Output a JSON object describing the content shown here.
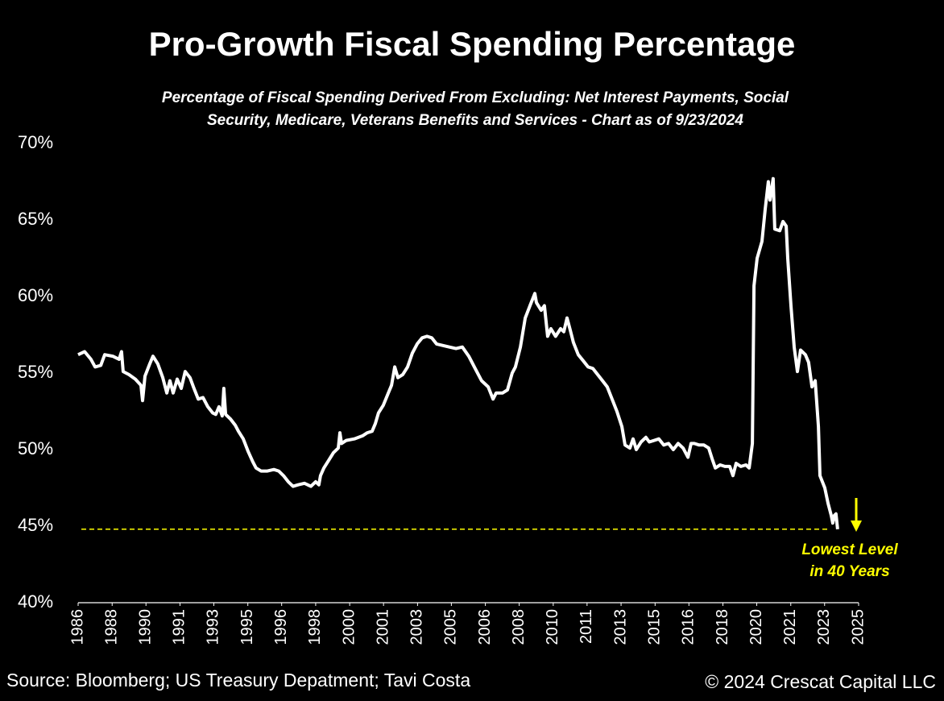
{
  "chart_data": {
    "type": "line",
    "title": "Pro-Growth Fiscal Spending Percentage",
    "subtitle": [
      "Percentage of Fiscal Spending Derived From Excluding:  Net Interest Payments, Social",
      "Security, Medicare, Veterans Benefits and Services - Chart as of 9/23/2024"
    ],
    "x": [
      1986.0,
      1986.32,
      1986.64,
      1986.85,
      1987.13,
      1987.33,
      1987.73,
      1988.05,
      1988.17,
      1988.25,
      1988.54,
      1988.86,
      1989.14,
      1989.22,
      1989.34,
      1989.58,
      1989.74,
      1989.98,
      1990.23,
      1990.43,
      1990.59,
      1990.75,
      1990.95,
      1991.15,
      1991.35,
      1991.59,
      1991.76,
      1992.0,
      1992.24,
      1992.48,
      1992.72,
      1992.88,
      1993.04,
      1993.2,
      1993.28,
      1993.37,
      1993.61,
      1993.85,
      1994.01,
      1994.25,
      1994.49,
      1994.73,
      1994.89,
      1995.14,
      1995.46,
      1995.78,
      1996.02,
      1996.26,
      1996.5,
      1996.74,
      1996.99,
      1997.31,
      1997.63,
      1997.87,
      1998.03,
      1998.11,
      1998.28,
      1998.52,
      1998.76,
      1999.0,
      1999.08,
      1999.16,
      1999.4,
      1999.8,
      2000.21,
      2000.45,
      2000.69,
      2000.85,
      2001.01,
      2001.25,
      2001.5,
      2001.66,
      2001.82,
      2001.98,
      2002.22,
      2002.46,
      2002.7,
      2002.94,
      2003.19,
      2003.43,
      2003.67,
      2003.91,
      2004.23,
      2004.55,
      2004.88,
      2005.2,
      2005.52,
      2005.84,
      2006.16,
      2006.49,
      2006.73,
      2006.89,
      2007.21,
      2007.45,
      2007.69,
      2007.85,
      2008.1,
      2008.34,
      2008.58,
      2008.82,
      2008.9,
      2009.14,
      2009.3,
      2009.46,
      2009.62,
      2009.86,
      2010.11,
      2010.27,
      2010.43,
      2010.59,
      2010.75,
      2010.99,
      2011.24,
      2011.48,
      2011.72,
      2011.96,
      2012.2,
      2012.44,
      2012.68,
      2012.92,
      2013.17,
      2013.33,
      2013.57,
      2013.73,
      2013.89,
      2014.13,
      2014.37,
      2014.54,
      2014.78,
      2015.02,
      2015.26,
      2015.5,
      2015.74,
      2015.98,
      2016.23,
      2016.47,
      2016.63,
      2016.79,
      2017.03,
      2017.27,
      2017.51,
      2017.68,
      2017.84,
      2018.08,
      2018.32,
      2018.56,
      2018.72,
      2018.88,
      2019.12,
      2019.37,
      2019.53,
      2019.69,
      2019.77,
      2019.93,
      2020.17,
      2020.33,
      2020.49,
      2020.57,
      2020.73,
      2020.81,
      2021.06,
      2021.22,
      2021.38,
      2021.46,
      2021.62,
      2021.78,
      2021.94,
      2022.1,
      2022.34,
      2022.5,
      2022.67,
      2022.83,
      2022.99,
      2023.07,
      2023.31,
      2023.47,
      2023.63,
      2023.71,
      2023.79,
      2023.87,
      2023.95
    ],
    "series": [
      {
        "color": "#ffffff",
        "values": [
          56.2,
          56.4,
          55.9,
          55.4,
          55.5,
          56.2,
          56.1,
          55.9,
          56.4,
          55.1,
          54.9,
          54.6,
          54.2,
          53.2,
          54.8,
          55.6,
          56.1,
          55.6,
          54.7,
          53.7,
          54.5,
          53.7,
          54.6,
          54.0,
          55.1,
          54.7,
          54.1,
          53.3,
          53.4,
          52.8,
          52.4,
          52.3,
          52.8,
          52.2,
          54.0,
          52.3,
          52.0,
          51.6,
          51.2,
          50.7,
          49.9,
          49.2,
          48.8,
          48.6,
          48.6,
          48.7,
          48.6,
          48.3,
          47.9,
          47.6,
          47.7,
          47.8,
          47.6,
          47.9,
          47.7,
          48.3,
          48.8,
          49.3,
          49.8,
          50.1,
          51.1,
          50.4,
          50.6,
          50.7,
          50.9,
          51.1,
          51.2,
          51.7,
          52.4,
          52.9,
          53.7,
          54.2,
          55.4,
          54.7,
          54.9,
          55.4,
          56.3,
          56.9,
          57.3,
          57.4,
          57.3,
          56.9,
          56.8,
          56.7,
          56.6,
          56.7,
          56.1,
          55.3,
          54.5,
          54.1,
          53.3,
          53.7,
          53.7,
          53.9,
          55.0,
          55.4,
          56.7,
          58.6,
          59.4,
          60.2,
          59.6,
          59.1,
          59.4,
          57.4,
          57.9,
          57.4,
          57.9,
          57.7,
          58.6,
          57.8,
          57.0,
          56.2,
          55.8,
          55.4,
          55.3,
          54.9,
          54.5,
          54.1,
          53.3,
          52.5,
          51.5,
          50.3,
          50.1,
          50.7,
          50.0,
          50.5,
          50.8,
          50.5,
          50.6,
          50.7,
          50.3,
          50.4,
          50.0,
          50.4,
          50.1,
          49.5,
          50.4,
          50.4,
          50.3,
          50.3,
          50.1,
          49.4,
          48.8,
          49.0,
          48.9,
          48.9,
          48.3,
          49.1,
          48.9,
          49.0,
          48.8,
          50.4,
          60.7,
          62.5,
          63.6,
          65.7,
          67.5,
          66.3,
          67.7,
          64.4,
          64.3,
          64.9,
          64.6,
          62.5,
          59.4,
          56.7,
          55.1,
          56.5,
          56.2,
          55.7,
          54.1,
          54.5,
          51.5,
          48.3,
          47.5,
          46.5,
          45.7,
          45.2,
          45.7,
          45.8,
          44.8
        ]
      }
    ],
    "xlim": [
      1986,
      2025
    ],
    "xticks": [
      {
        "value": 1986.0,
        "label": "1986"
      },
      {
        "value": 1987.7,
        "label": "1988"
      },
      {
        "value": 1989.39,
        "label": "1990"
      },
      {
        "value": 1991.09,
        "label": "1991"
      },
      {
        "value": 1992.78,
        "label": "1993"
      },
      {
        "value": 1994.48,
        "label": "1995"
      },
      {
        "value": 1996.17,
        "label": "1996"
      },
      {
        "value": 1997.87,
        "label": "1998"
      },
      {
        "value": 1999.57,
        "label": "2000"
      },
      {
        "value": 2001.26,
        "label": "2001"
      },
      {
        "value": 2002.96,
        "label": "2003"
      },
      {
        "value": 2004.65,
        "label": "2005"
      },
      {
        "value": 2006.35,
        "label": "2006"
      },
      {
        "value": 2008.04,
        "label": "2008"
      },
      {
        "value": 2009.74,
        "label": "2010"
      },
      {
        "value": 2011.43,
        "label": "2011"
      },
      {
        "value": 2013.13,
        "label": "2013"
      },
      {
        "value": 2014.83,
        "label": "2015"
      },
      {
        "value": 2016.52,
        "label": "2016"
      },
      {
        "value": 2018.22,
        "label": "2018"
      },
      {
        "value": 2019.91,
        "label": "2020"
      },
      {
        "value": 2021.61,
        "label": "2021"
      },
      {
        "value": 2023.3,
        "label": "2023"
      },
      {
        "value": 2025.0,
        "label": "2025"
      }
    ],
    "ylim": [
      40,
      70
    ],
    "yticks": [
      {
        "value": 40,
        "label": "40%"
      },
      {
        "value": 45,
        "label": "45%"
      },
      {
        "value": 50,
        "label": "50%"
      },
      {
        "value": 55,
        "label": "55%"
      },
      {
        "value": 60,
        "label": "60%"
      },
      {
        "value": 65,
        "label": "65%"
      },
      {
        "value": 70,
        "label": "70%"
      }
    ],
    "reference_line": {
      "value": 44.8,
      "color": "#ffff00"
    },
    "annotation": [
      "Lowest Level",
      "in 40 Years"
    ],
    "source": "Source: Bloomberg; US Treasury Depatment; Tavi Costa",
    "copyright": "© 2024 Crescat Capital LLC"
  }
}
